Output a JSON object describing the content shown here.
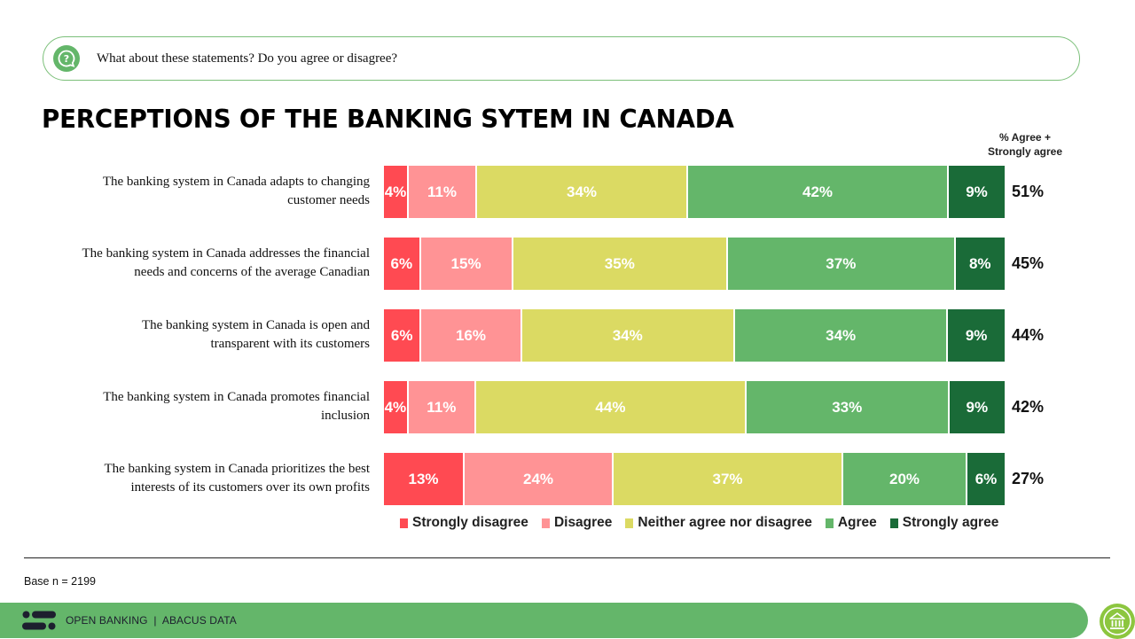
{
  "question": {
    "icon": "question-bubble-icon",
    "text": "What about these statements? Do you agree or disagree?"
  },
  "title": "PERCEPTIONS OF THE BANKING SYTEM IN CANADA",
  "net_header": {
    "line1": "% Agree +",
    "line2": "Strongly agree"
  },
  "colors": {
    "strongly_disagree": "#ff4a52",
    "disagree": "#ff9395",
    "neither": "#dbda63",
    "agree": "#64b66a",
    "strongly_agree": "#1a6b38",
    "footer": "#64b66a",
    "home_button": "#8cc63f"
  },
  "rows": [
    {
      "label_line1": "The banking system in Canada adapts to changing",
      "label_line2": "customer needs",
      "values": [
        "4%",
        "11%",
        "34%",
        "42%",
        "9%"
      ],
      "net": "51%"
    },
    {
      "label_line1": "The banking system in Canada addresses the financial",
      "label_line2": "needs and concerns of the average Canadian",
      "values": [
        "6%",
        "15%",
        "35%",
        "37%",
        "8%"
      ],
      "net": "45%"
    },
    {
      "label_line1": "The banking system in Canada is open and",
      "label_line2": "transparent with its customers",
      "values": [
        "6%",
        "16%",
        "34%",
        "34%",
        "9%"
      ],
      "net": "44%"
    },
    {
      "label_line1": "The banking system in Canada promotes financial",
      "label_line2": "inclusion",
      "values": [
        "4%",
        "11%",
        "44%",
        "33%",
        "9%"
      ],
      "net": "42%"
    },
    {
      "label_line1": "The banking system in Canada prioritizes the best",
      "label_line2": "interests of its customers over its own profits",
      "values": [
        "13%",
        "24%",
        "37%",
        "20%",
        "6%"
      ],
      "net": "27%"
    }
  ],
  "legend": [
    "Strongly disagree",
    "Disagree",
    "Neither agree nor disagree",
    "Agree",
    "Strongly agree"
  ],
  "base_note": "Base n = 2199",
  "footer": {
    "logo": "abacus-logo-icon",
    "text": "OPEN BANKING  |  ABACUS DATA",
    "home_icon": "bank-building-icon"
  },
  "chart_data": {
    "type": "bar",
    "orientation": "horizontal",
    "stacked": true,
    "title": "PERCEPTIONS OF THE BANKING SYTEM IN CANADA",
    "subtitle": "What about these statements? Do you agree or disagree?",
    "categories": [
      "The banking system in Canada adapts to changing customer needs",
      "The banking system in Canada addresses the financial needs and concerns of the average Canadian",
      "The banking system in Canada is open and transparent with its customers",
      "The banking system in Canada promotes financial inclusion",
      "The banking system in Canada prioritizes the best interests of its customers over its own profits"
    ],
    "series": [
      {
        "name": "Strongly disagree",
        "color": "#ff4a52",
        "values": [
          4,
          6,
          6,
          4,
          13
        ]
      },
      {
        "name": "Disagree",
        "color": "#ff9395",
        "values": [
          11,
          15,
          16,
          11,
          24
        ]
      },
      {
        "name": "Neither agree nor disagree",
        "color": "#dbda63",
        "values": [
          34,
          35,
          34,
          44,
          37
        ]
      },
      {
        "name": "Agree",
        "color": "#64b66a",
        "values": [
          42,
          37,
          34,
          33,
          20
        ]
      },
      {
        "name": "Strongly agree",
        "color": "#1a6b38",
        "values": [
          9,
          8,
          9,
          9,
          6
        ]
      }
    ],
    "net_agree": {
      "label": "% Agree + Strongly agree",
      "values": [
        51,
        45,
        44,
        42,
        27
      ]
    },
    "xlabel": "",
    "ylabel": "",
    "xlim": [
      0,
      100
    ],
    "grid": false,
    "legend_position": "bottom",
    "note": "Base n = 2199"
  }
}
